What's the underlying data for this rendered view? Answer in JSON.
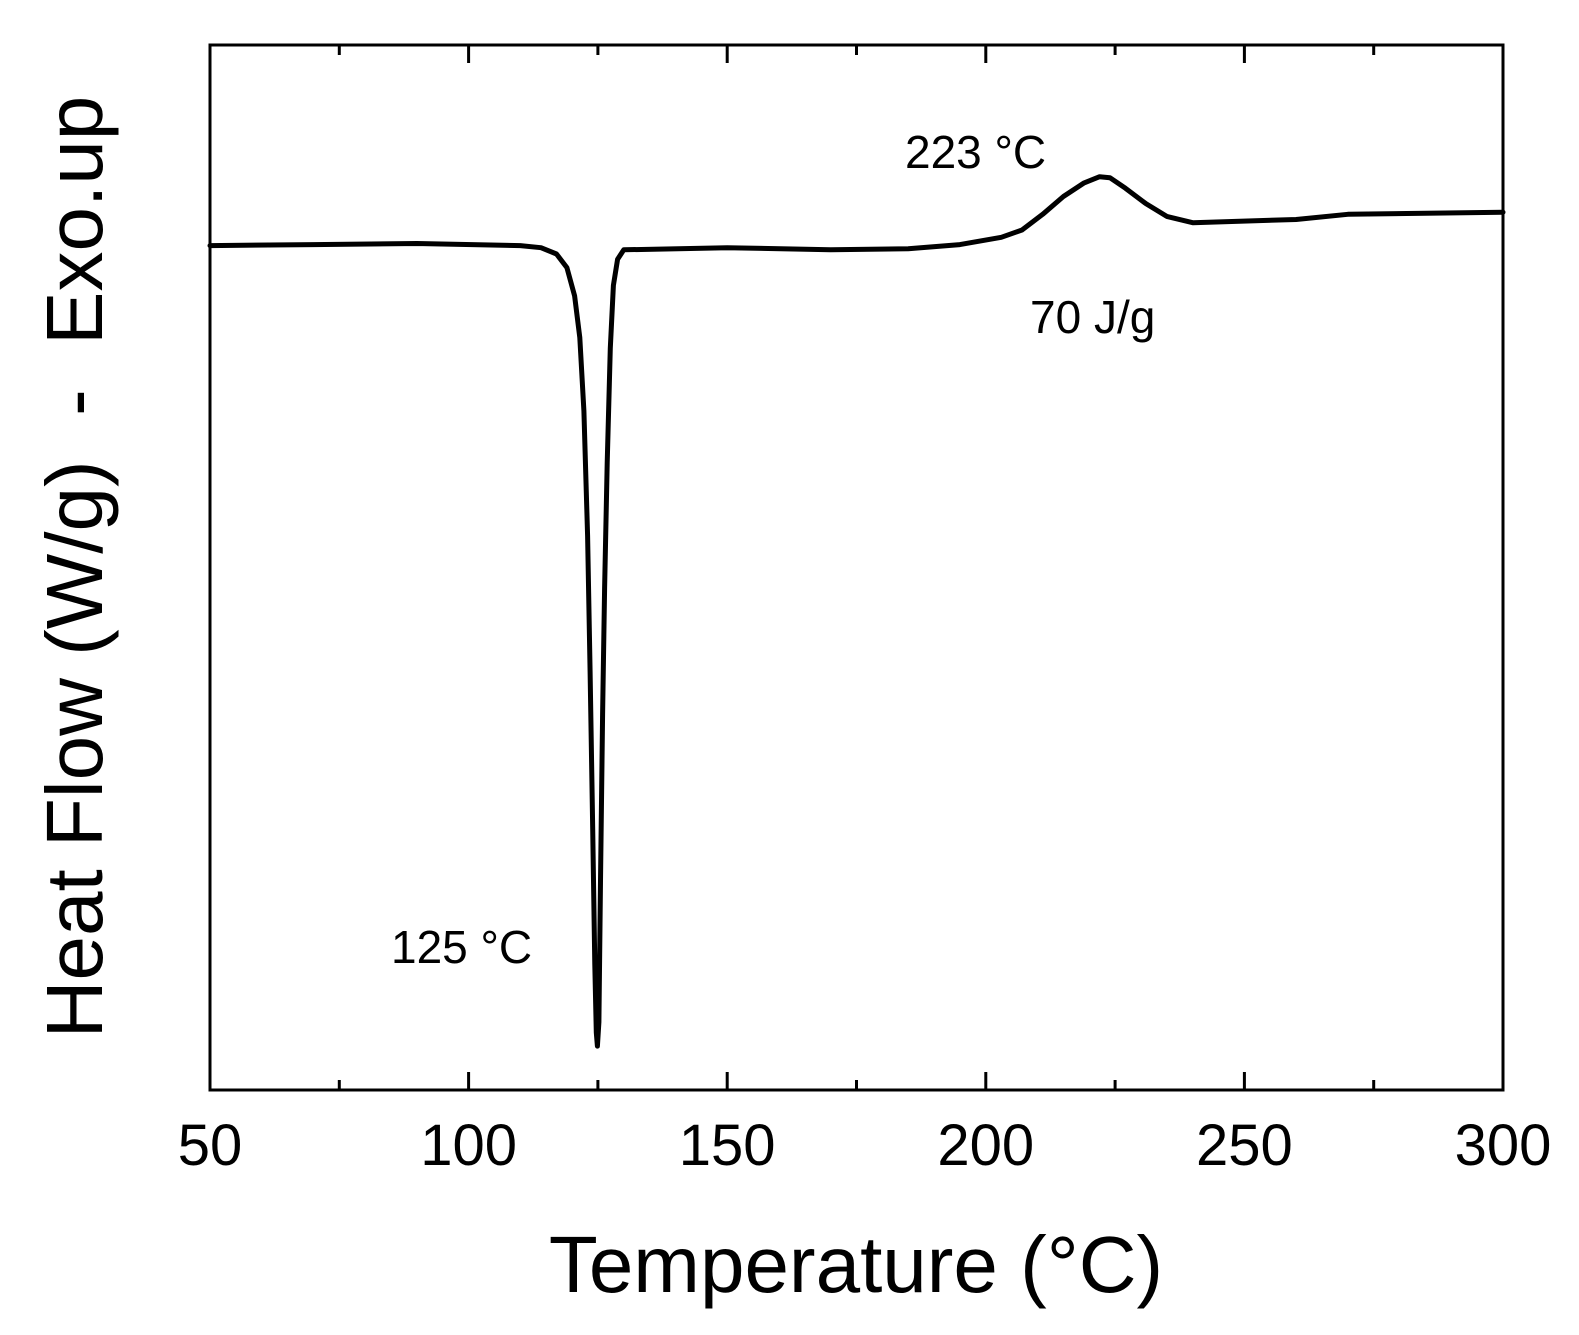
{
  "chart_data": {
    "type": "line",
    "xlabel": "Temperature (°C)",
    "ylabel": "Heat Flow (W/g)  -  Exo.up",
    "xlim": [
      50,
      300
    ],
    "ylim": [
      0,
      100
    ],
    "x_ticks": [
      50,
      100,
      150,
      200,
      250,
      300
    ],
    "x_ticks_minor": [
      75,
      125,
      175,
      225,
      275
    ],
    "y_ticks_shown": false,
    "grid": false,
    "legend": "none",
    "series": [
      {
        "color": "#000000",
        "points": [
          [
            50,
            80.8
          ],
          [
            70,
            80.9
          ],
          [
            90,
            81.0
          ],
          [
            110,
            80.8
          ],
          [
            114,
            80.6
          ],
          [
            117,
            80.0
          ],
          [
            119,
            78.7
          ],
          [
            120.5,
            76.0
          ],
          [
            121.5,
            72.0
          ],
          [
            122.3,
            65.0
          ],
          [
            123.0,
            53.0
          ],
          [
            123.5,
            40.0
          ],
          [
            124.0,
            25.0
          ],
          [
            124.4,
            12.0
          ],
          [
            124.7,
            5.5
          ],
          [
            124.9,
            4.2
          ],
          [
            125.2,
            6.5
          ],
          [
            125.5,
            20.0
          ],
          [
            125.9,
            36.0
          ],
          [
            126.3,
            48.0
          ],
          [
            126.8,
            60.0
          ],
          [
            127.4,
            71.0
          ],
          [
            128.0,
            77.0
          ],
          [
            128.8,
            79.5
          ],
          [
            130,
            80.4
          ],
          [
            150,
            80.6
          ],
          [
            170,
            80.4
          ],
          [
            185,
            80.5
          ],
          [
            195,
            80.9
          ],
          [
            203,
            81.6
          ],
          [
            207,
            82.3
          ],
          [
            211,
            83.8
          ],
          [
            215,
            85.5
          ],
          [
            219,
            86.8
          ],
          [
            222,
            87.4
          ],
          [
            224,
            87.3
          ],
          [
            227,
            86.3
          ],
          [
            231,
            84.8
          ],
          [
            235,
            83.6
          ],
          [
            240,
            83.0
          ],
          [
            260,
            83.3
          ],
          [
            270,
            83.8
          ],
          [
            300,
            84.0
          ]
        ]
      }
    ],
    "annotations": [
      {
        "text": "223 °C",
        "x": 223,
        "y": 87.4
      },
      {
        "text": "70 J/g",
        "x": 223,
        "y": 87.4
      },
      {
        "text": "125 °C",
        "x": 124.9,
        "y": 4.2
      }
    ]
  }
}
